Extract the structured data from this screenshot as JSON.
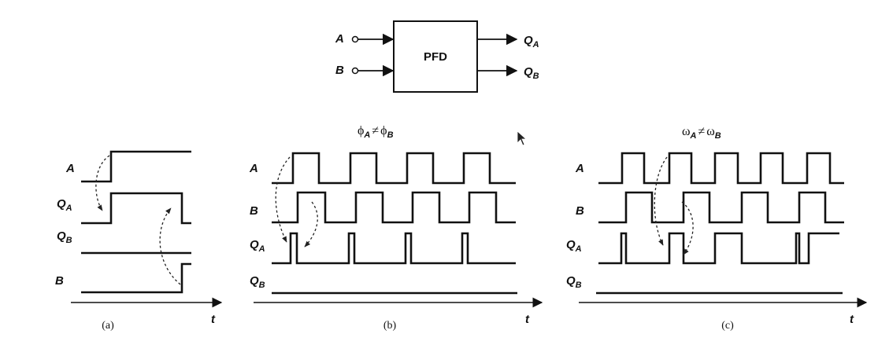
{
  "pfd_block": {
    "title": "PFD",
    "inputs": [
      {
        "name": "A"
      },
      {
        "name": "B"
      }
    ],
    "outputs": [
      {
        "name": "Q",
        "sub": "A"
      },
      {
        "name": "Q",
        "sub": "B"
      }
    ]
  },
  "panels": [
    {
      "id": "a",
      "caption": "(a)",
      "axis_label": "t",
      "header": null,
      "signals": [
        {
          "name": "A",
          "sub": ""
        },
        {
          "name": "Q",
          "sub": "A"
        },
        {
          "name": "Q",
          "sub": "B"
        },
        {
          "name": "B",
          "sub": ""
        }
      ]
    },
    {
      "id": "b",
      "caption": "(b)",
      "axis_label": "t",
      "header": {
        "left": "ϕ",
        "left_sub": "A",
        "op": "≠",
        "right": "ϕ",
        "right_sub": "B"
      },
      "signals": [
        {
          "name": "A",
          "sub": ""
        },
        {
          "name": "B",
          "sub": ""
        },
        {
          "name": "Q",
          "sub": "A"
        },
        {
          "name": "Q",
          "sub": "B"
        }
      ]
    },
    {
      "id": "c",
      "caption": "(c)",
      "axis_label": "t",
      "header": {
        "left": "ω",
        "left_sub": "A",
        "op": "≠",
        "right": "ω",
        "right_sub": "B"
      },
      "signals": [
        {
          "name": "A",
          "sub": ""
        },
        {
          "name": "B",
          "sub": ""
        },
        {
          "name": "Q",
          "sub": "A"
        },
        {
          "name": "Q",
          "sub": "B"
        }
      ]
    }
  ]
}
